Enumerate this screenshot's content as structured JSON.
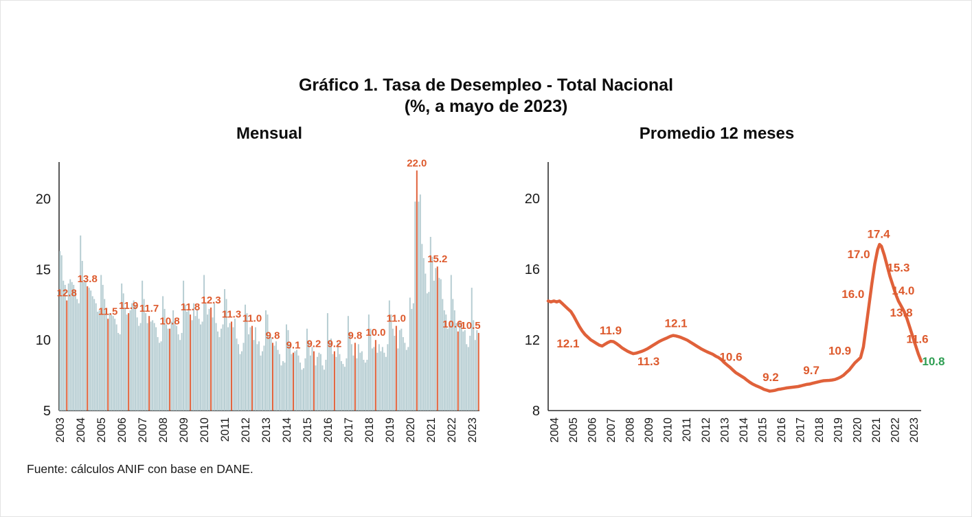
{
  "figure": {
    "title_line1": "Gráfico 1. Tasa de Desempleo - Total Nacional",
    "title_line2": "(%, a mayo de 2023)",
    "source": "Fuente: cálculos ANIF con base en DANE."
  },
  "chart_data": [
    {
      "type": "bar",
      "title": "Mensual",
      "ylim": [
        5,
        22.6
      ],
      "yticks": [
        5,
        10,
        15,
        20
      ],
      "grid": false,
      "x_years": [
        2003,
        2004,
        2005,
        2006,
        2007,
        2008,
        2009,
        2010,
        2011,
        2012,
        2013,
        2014,
        2015,
        2016,
        2017,
        2018,
        2019,
        2020,
        2021,
        2022,
        2023
      ],
      "highlight_month_index": 4,
      "may_labels": [
        "12.8",
        "13.8",
        "11.5",
        "11.9",
        "11.7",
        "10.8",
        "11.8",
        "12.3",
        "11.3",
        "11.0",
        "9.8",
        "9.1",
        "9.2",
        "9.2",
        "9.8",
        "10.0",
        "11.0",
        "22.0",
        "15.2",
        "10.6",
        "10.5"
      ],
      "monthly_values": {
        "2003": [
          16.3,
          16.0,
          14.2,
          13.9,
          12.8,
          14.0,
          14.3,
          14.1,
          13.9,
          13.5,
          12.9,
          12.6
        ],
        "2004": [
          17.4,
          15.6,
          14.1,
          14.2,
          13.8,
          13.7,
          13.5,
          13.1,
          12.9,
          12.6,
          12.0,
          12.1
        ],
        "2005": [
          14.6,
          13.9,
          12.9,
          12.1,
          11.5,
          11.9,
          11.8,
          11.7,
          11.5,
          11.1,
          10.5,
          10.4
        ],
        "2006": [
          14.0,
          13.3,
          12.3,
          11.8,
          11.9,
          12.1,
          12.6,
          12.8,
          12.5,
          11.6,
          11.0,
          11.2
        ],
        "2007": [
          14.2,
          12.9,
          11.9,
          11.2,
          11.7,
          11.3,
          11.4,
          11.2,
          10.9,
          10.2,
          9.8,
          9.9
        ],
        "2008": [
          13.1,
          12.2,
          11.1,
          10.8,
          10.8,
          11.3,
          12.1,
          11.4,
          11.0,
          10.4,
          10.0,
          10.5
        ],
        "2009": [
          14.2,
          12.5,
          12.0,
          12.1,
          11.8,
          11.4,
          12.6,
          11.7,
          12.2,
          11.5,
          11.1,
          11.3
        ],
        "2010": [
          14.6,
          12.6,
          11.8,
          12.2,
          12.3,
          11.6,
          12.6,
          11.2,
          10.6,
          10.2,
          10.8,
          11.1
        ],
        "2011": [
          13.6,
          12.9,
          10.9,
          11.2,
          11.3,
          10.9,
          11.5,
          10.1,
          9.7,
          9.0,
          9.2,
          9.8
        ],
        "2012": [
          12.5,
          11.9,
          10.4,
          10.9,
          11.0,
          10.0,
          10.9,
          9.7,
          9.9,
          8.9,
          9.2,
          9.6
        ],
        "2013": [
          12.1,
          11.8,
          10.2,
          10.2,
          9.8,
          9.6,
          9.9,
          9.3,
          9.0,
          8.2,
          8.5,
          8.4
        ],
        "2014": [
          11.1,
          10.7,
          9.7,
          9.0,
          9.1,
          9.2,
          9.3,
          8.9,
          8.4,
          7.9,
          8.0,
          8.7
        ],
        "2015": [
          10.8,
          9.9,
          8.9,
          9.5,
          9.2,
          8.2,
          8.8,
          9.1,
          9.0,
          8.2,
          7.9,
          8.6
        ],
        "2016": [
          11.9,
          10.0,
          10.1,
          9.0,
          9.2,
          8.8,
          9.8,
          9.0,
          8.5,
          8.3,
          8.1,
          8.7
        ],
        "2017": [
          11.7,
          10.5,
          9.7,
          8.9,
          9.8,
          8.7,
          9.7,
          9.1,
          9.2,
          8.6,
          8.4,
          8.6
        ],
        "2018": [
          11.8,
          10.8,
          9.4,
          9.5,
          10.0,
          9.1,
          9.7,
          9.2,
          9.5,
          9.1,
          8.8,
          9.7
        ],
        "2019": [
          12.8,
          11.8,
          10.8,
          10.3,
          11.0,
          9.4,
          10.7,
          10.8,
          10.2,
          9.8,
          9.3,
          9.5
        ],
        "2020": [
          13.0,
          12.2,
          12.6,
          19.8,
          22.0,
          19.8,
          20.3,
          16.8,
          15.8,
          14.7,
          13.3,
          13.4
        ],
        "2021": [
          17.3,
          15.9,
          14.2,
          15.1,
          15.2,
          14.4,
          14.3,
          12.9,
          12.1,
          11.8,
          10.8,
          11.1
        ],
        "2022": [
          14.6,
          12.9,
          12.1,
          11.2,
          10.6,
          11.3,
          11.0,
          10.6,
          10.7,
          9.7,
          9.5,
          10.3
        ],
        "2023": [
          13.7,
          11.4,
          10.0,
          10.7,
          10.5
        ]
      },
      "bar_color": "#b6cdd2",
      "highlight_color": "#e0613a",
      "label_color": "#dd5a2d"
    },
    {
      "type": "line",
      "title": "Promedio 12 meses",
      "ylim": [
        8,
        22.06
      ],
      "yticks": [
        8,
        12,
        16,
        20
      ],
      "grid": false,
      "x_years": [
        2004,
        2005,
        2006,
        2007,
        2008,
        2009,
        2010,
        2011,
        2012,
        2013,
        2014,
        2015,
        2016,
        2017,
        2018,
        2019,
        2020,
        2021,
        2022,
        2023
      ],
      "points": [
        [
          2003.7,
          14.2
        ],
        [
          2003.85,
          14.15
        ],
        [
          2004.0,
          14.2
        ],
        [
          2004.15,
          14.15
        ],
        [
          2004.3,
          14.2
        ],
        [
          2004.45,
          14.05
        ],
        [
          2004.6,
          13.9
        ],
        [
          2004.75,
          13.75
        ],
        [
          2004.9,
          13.6
        ],
        [
          2005.05,
          13.35
        ],
        [
          2005.2,
          13.05
        ],
        [
          2005.35,
          12.75
        ],
        [
          2005.5,
          12.5
        ],
        [
          2005.65,
          12.3
        ],
        [
          2005.8,
          12.15
        ],
        [
          2005.95,
          12.0
        ],
        [
          2006.1,
          11.9
        ],
        [
          2006.25,
          11.8
        ],
        [
          2006.4,
          11.7
        ],
        [
          2006.55,
          11.65
        ],
        [
          2006.7,
          11.75
        ],
        [
          2006.85,
          11.85
        ],
        [
          2007.0,
          11.92
        ],
        [
          2007.15,
          11.9
        ],
        [
          2007.3,
          11.8
        ],
        [
          2007.45,
          11.68
        ],
        [
          2007.6,
          11.55
        ],
        [
          2007.75,
          11.45
        ],
        [
          2007.9,
          11.35
        ],
        [
          2008.05,
          11.28
        ],
        [
          2008.2,
          11.22
        ],
        [
          2008.35,
          11.25
        ],
        [
          2008.5,
          11.3
        ],
        [
          2008.65,
          11.35
        ],
        [
          2008.8,
          11.42
        ],
        [
          2008.95,
          11.5
        ],
        [
          2009.1,
          11.6
        ],
        [
          2009.25,
          11.7
        ],
        [
          2009.4,
          11.8
        ],
        [
          2009.55,
          11.9
        ],
        [
          2009.7,
          11.98
        ],
        [
          2009.85,
          12.05
        ],
        [
          2010.0,
          12.12
        ],
        [
          2010.15,
          12.2
        ],
        [
          2010.3,
          12.25
        ],
        [
          2010.45,
          12.22
        ],
        [
          2010.6,
          12.18
        ],
        [
          2010.75,
          12.12
        ],
        [
          2010.9,
          12.05
        ],
        [
          2011.05,
          11.98
        ],
        [
          2011.2,
          11.88
        ],
        [
          2011.35,
          11.78
        ],
        [
          2011.5,
          11.68
        ],
        [
          2011.65,
          11.58
        ],
        [
          2011.8,
          11.48
        ],
        [
          2011.95,
          11.4
        ],
        [
          2012.1,
          11.32
        ],
        [
          2012.25,
          11.25
        ],
        [
          2012.4,
          11.18
        ],
        [
          2012.55,
          11.08
        ],
        [
          2012.7,
          11.0
        ],
        [
          2012.85,
          10.88
        ],
        [
          2013.0,
          10.72
        ],
        [
          2013.15,
          10.58
        ],
        [
          2013.3,
          10.45
        ],
        [
          2013.45,
          10.3
        ],
        [
          2013.6,
          10.15
        ],
        [
          2013.75,
          10.05
        ],
        [
          2013.9,
          9.95
        ],
        [
          2014.05,
          9.85
        ],
        [
          2014.2,
          9.72
        ],
        [
          2014.35,
          9.6
        ],
        [
          2014.5,
          9.5
        ],
        [
          2014.65,
          9.42
        ],
        [
          2014.8,
          9.35
        ],
        [
          2014.95,
          9.28
        ],
        [
          2015.1,
          9.2
        ],
        [
          2015.25,
          9.15
        ],
        [
          2015.4,
          9.1
        ],
        [
          2015.55,
          9.12
        ],
        [
          2015.7,
          9.15
        ],
        [
          2015.85,
          9.2
        ],
        [
          2016.0,
          9.22
        ],
        [
          2016.15,
          9.25
        ],
        [
          2016.3,
          9.28
        ],
        [
          2016.45,
          9.3
        ],
        [
          2016.6,
          9.32
        ],
        [
          2016.75,
          9.34
        ],
        [
          2016.9,
          9.36
        ],
        [
          2017.05,
          9.4
        ],
        [
          2017.2,
          9.44
        ],
        [
          2017.35,
          9.48
        ],
        [
          2017.5,
          9.5
        ],
        [
          2017.65,
          9.54
        ],
        [
          2017.8,
          9.58
        ],
        [
          2017.95,
          9.62
        ],
        [
          2018.1,
          9.66
        ],
        [
          2018.25,
          9.69
        ],
        [
          2018.4,
          9.7
        ],
        [
          2018.55,
          9.71
        ],
        [
          2018.7,
          9.73
        ],
        [
          2018.85,
          9.76
        ],
        [
          2019.0,
          9.82
        ],
        [
          2019.15,
          9.9
        ],
        [
          2019.3,
          10.0
        ],
        [
          2019.45,
          10.15
        ],
        [
          2019.6,
          10.3
        ],
        [
          2019.75,
          10.5
        ],
        [
          2019.9,
          10.7
        ],
        [
          2020.05,
          10.85
        ],
        [
          2020.2,
          11.0
        ],
        [
          2020.35,
          11.6
        ],
        [
          2020.5,
          12.8
        ],
        [
          2020.65,
          14.0
        ],
        [
          2020.8,
          15.2
        ],
        [
          2020.95,
          16.3
        ],
        [
          2021.1,
          17.1
        ],
        [
          2021.2,
          17.4
        ],
        [
          2021.3,
          17.3
        ],
        [
          2021.45,
          16.8
        ],
        [
          2021.6,
          16.2
        ],
        [
          2021.75,
          15.6
        ],
        [
          2021.9,
          15.1
        ],
        [
          2022.05,
          14.6
        ],
        [
          2022.2,
          14.2
        ],
        [
          2022.35,
          13.9
        ],
        [
          2022.5,
          13.6
        ],
        [
          2022.65,
          13.2
        ],
        [
          2022.8,
          12.7
        ],
        [
          2022.95,
          12.2
        ],
        [
          2023.1,
          11.7
        ],
        [
          2023.25,
          11.2
        ],
        [
          2023.4,
          10.8
        ]
      ],
      "annotations": [
        {
          "text": "12.1",
          "x": 2004.75,
          "y": 11.8
        },
        {
          "text": "11.9",
          "x": 2007.0,
          "y": 12.55
        },
        {
          "text": "11.3",
          "x": 2009.0,
          "y": 10.8
        },
        {
          "text": "12.1",
          "x": 2010.45,
          "y": 12.95
        },
        {
          "text": "10.6",
          "x": 2013.35,
          "y": 11.05
        },
        {
          "text": "9.2",
          "x": 2015.45,
          "y": 9.9
        },
        {
          "text": "9.7",
          "x": 2017.6,
          "y": 10.3
        },
        {
          "text": "10.9",
          "x": 2019.1,
          "y": 11.4
        },
        {
          "text": "16.0",
          "x": 2019.8,
          "y": 14.6
        },
        {
          "text": "17.0",
          "x": 2020.1,
          "y": 16.85
        },
        {
          "text": "17.4",
          "x": 2021.15,
          "y": 18.0
        },
        {
          "text": "15.3",
          "x": 2022.2,
          "y": 16.1
        },
        {
          "text": "14.0",
          "x": 2022.45,
          "y": 14.8
        },
        {
          "text": "13.8",
          "x": 2022.35,
          "y": 13.55
        },
        {
          "text": "11.6",
          "x": 2023.2,
          "y": 12.05
        },
        {
          "text": "10.8",
          "x": 2023.45,
          "y": 10.8,
          "color": "#2f9e53",
          "anchor": "start"
        }
      ],
      "line_color": "#e0613a",
      "label_color": "#dd5a2d",
      "end_label_color": "#2f9e53"
    }
  ]
}
